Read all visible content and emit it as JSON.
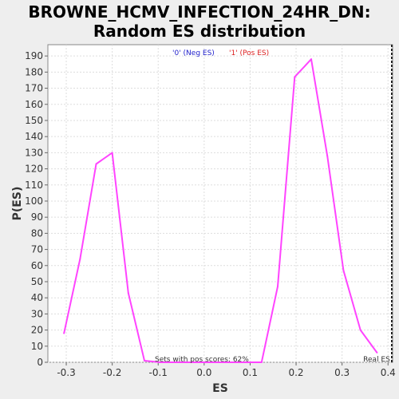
{
  "chart_data": {
    "type": "line",
    "title": [
      "BROWNE_HCMV_INFECTION_24HR_DN:",
      "Random ES distribution"
    ],
    "xlabel": "ES",
    "ylabel": "P(ES)",
    "xlim": [
      -0.34,
      0.41
    ],
    "ylim": [
      0,
      197
    ],
    "xticks": [
      -0.3,
      -0.2,
      -0.1,
      0.0,
      0.1,
      0.2,
      0.3,
      0.4
    ],
    "xtick_labels": [
      "-0.3",
      "-0.2",
      "-0.1",
      "0.0",
      "0.1",
      "0.2",
      "0.3",
      "0.4"
    ],
    "yticks": [
      0,
      10,
      20,
      30,
      40,
      50,
      60,
      70,
      80,
      90,
      100,
      110,
      120,
      130,
      140,
      150,
      160,
      170,
      180,
      190
    ],
    "grid": true,
    "series": [
      {
        "color": "#ff44ff",
        "x": [
          -0.305,
          -0.27,
          -0.235,
          -0.2,
          -0.165,
          -0.13,
          -0.095,
          -0.06,
          -0.025,
          0.01,
          0.045,
          0.08,
          0.125,
          0.16,
          0.197,
          0.233,
          0.268,
          0.303,
          0.34,
          0.376
        ],
        "y": [
          18,
          64,
          123,
          130,
          43,
          1,
          0,
          0,
          0,
          0,
          0,
          0,
          0,
          47,
          177,
          188,
          128,
          57,
          20,
          6
        ]
      }
    ],
    "legend": {
      "placement": "top-center",
      "entries": [
        {
          "label": "'0' (Neg ES)",
          "color": "#2222cc"
        },
        {
          "label": "'1' (Pos ES)",
          "color": "#dd2222"
        }
      ]
    },
    "real_es": {
      "x": 0.408,
      "label": "Real ES"
    },
    "annotation": "Sets with pos scores: 62%"
  }
}
